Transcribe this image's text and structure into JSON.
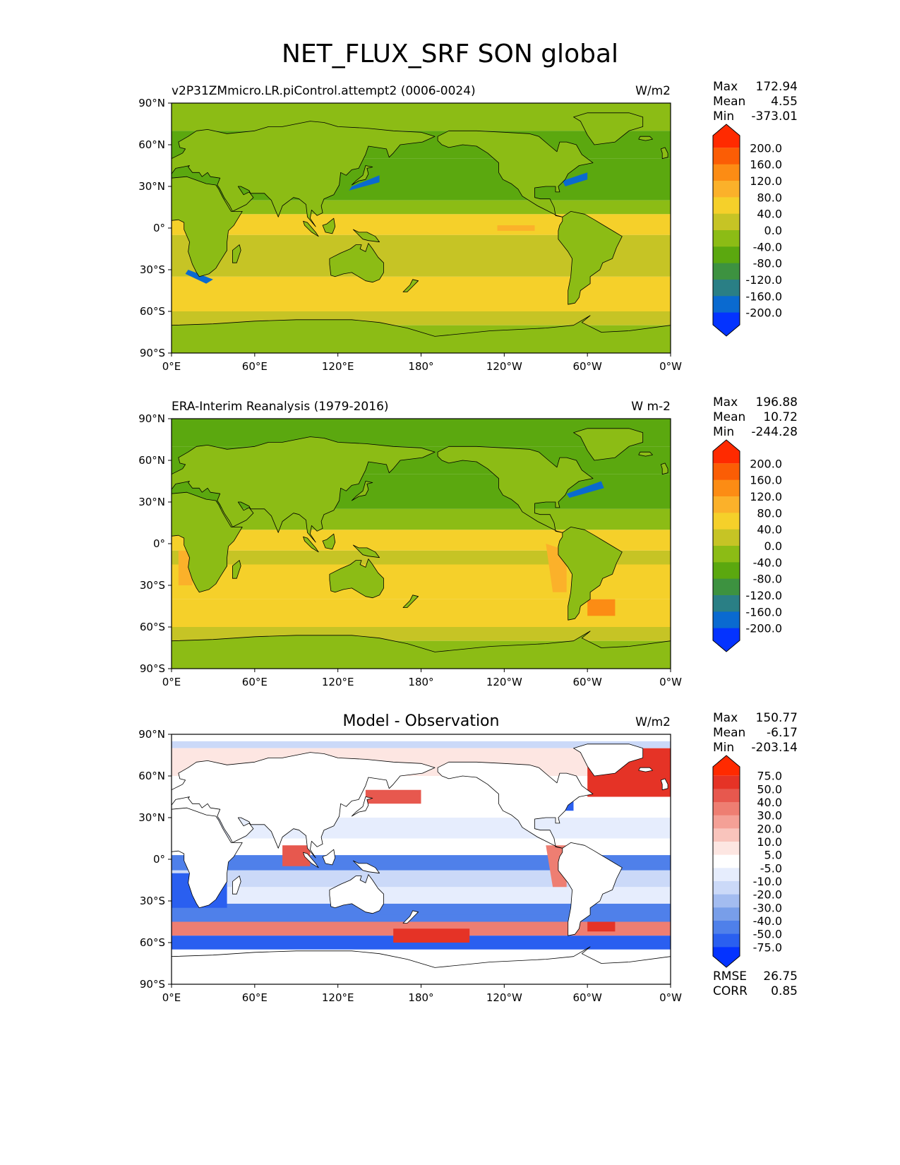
{
  "page_title": "NET_FLUX_SRF SON global",
  "colors": {
    "main_scale": [
      "#0433ff",
      "#0a6ad0",
      "#2a7f85",
      "#3d9240",
      "#5ba80f",
      "#8cbc15",
      "#c6c425",
      "#f5d02a",
      "#fbb12a",
      "#fc8c14",
      "#fb5d05",
      "#ff2a00"
    ],
    "diff_scale": [
      "#0433ff",
      "#2a5ff0",
      "#4f80ea",
      "#789ee9",
      "#a3bcf0",
      "#cbd9f8",
      "#e6edfd",
      "#ffffff",
      "#fde6e2",
      "#f9c4bc",
      "#f4a096",
      "#ee7e72",
      "#e7584e",
      "#e53326",
      "#ff2a00"
    ]
  },
  "chart_data": [
    {
      "type": "heatmap",
      "panel": "model",
      "title_left": "v2P31ZMmicro.LR.piControl.attempt2 (0006-0024)",
      "title_center": "",
      "units": "W/m2",
      "xlabel": "",
      "ylabel": "",
      "xlim": [
        0,
        360
      ],
      "ylim": [
        -90,
        90
      ],
      "x_ticks": [
        "0°E",
        "60°E",
        "120°E",
        "180°",
        "120°W",
        "60°W",
        "0°W"
      ],
      "y_ticks": [
        "90°N",
        "60°N",
        "30°N",
        "0°",
        "30°S",
        "60°S",
        "90°S"
      ],
      "stats": [
        {
          "label": "Max",
          "value": "172.94"
        },
        {
          "label": "Mean",
          "value": "4.55"
        },
        {
          "label": "Min",
          "value": "-373.01"
        }
      ],
      "colorbar_levels": [
        "200.0",
        "160.0",
        "120.0",
        "80.0",
        "40.0",
        "0.0",
        "-40.0",
        "-80.0",
        "-120.0",
        "-160.0",
        "-200.0"
      ]
    },
    {
      "type": "heatmap",
      "panel": "observation",
      "title_left": "ERA-Interim Reanalysis (1979-2016)",
      "title_center": "",
      "units": "W m-2",
      "xlabel": "",
      "ylabel": "",
      "xlim": [
        0,
        360
      ],
      "ylim": [
        -90,
        90
      ],
      "x_ticks": [
        "0°E",
        "60°E",
        "120°E",
        "180°",
        "120°W",
        "60°W",
        "0°W"
      ],
      "y_ticks": [
        "90°N",
        "60°N",
        "30°N",
        "0°",
        "30°S",
        "60°S",
        "90°S"
      ],
      "stats": [
        {
          "label": "Max",
          "value": "196.88"
        },
        {
          "label": "Mean",
          "value": "10.72"
        },
        {
          "label": "Min",
          "value": "-244.28"
        }
      ],
      "colorbar_levels": [
        "200.0",
        "160.0",
        "120.0",
        "80.0",
        "40.0",
        "0.0",
        "-40.0",
        "-80.0",
        "-120.0",
        "-160.0",
        "-200.0"
      ]
    },
    {
      "type": "heatmap",
      "panel": "difference",
      "title_left": "",
      "title_center": "Model - Observation",
      "units": "W/m2",
      "xlabel": "",
      "ylabel": "",
      "xlim": [
        0,
        360
      ],
      "ylim": [
        -90,
        90
      ],
      "x_ticks": [
        "0°E",
        "60°E",
        "120°E",
        "180°",
        "120°W",
        "60°W",
        "0°W"
      ],
      "y_ticks": [
        "90°N",
        "60°N",
        "30°N",
        "0°",
        "30°S",
        "60°S",
        "90°S"
      ],
      "stats": [
        {
          "label": "Max",
          "value": "150.77"
        },
        {
          "label": "Mean",
          "value": "-6.17"
        },
        {
          "label": "Min",
          "value": "-203.14"
        }
      ],
      "extra_stats": [
        {
          "label": "RMSE",
          "value": "26.75"
        },
        {
          "label": "CORR",
          "value": "0.85"
        }
      ],
      "colorbar_levels": [
        "75.0",
        "50.0",
        "40.0",
        "30.0",
        "20.0",
        "10.0",
        "5.0",
        "-5.0",
        "-10.0",
        "-20.0",
        "-30.0",
        "-40.0",
        "-50.0",
        "-75.0"
      ]
    }
  ]
}
